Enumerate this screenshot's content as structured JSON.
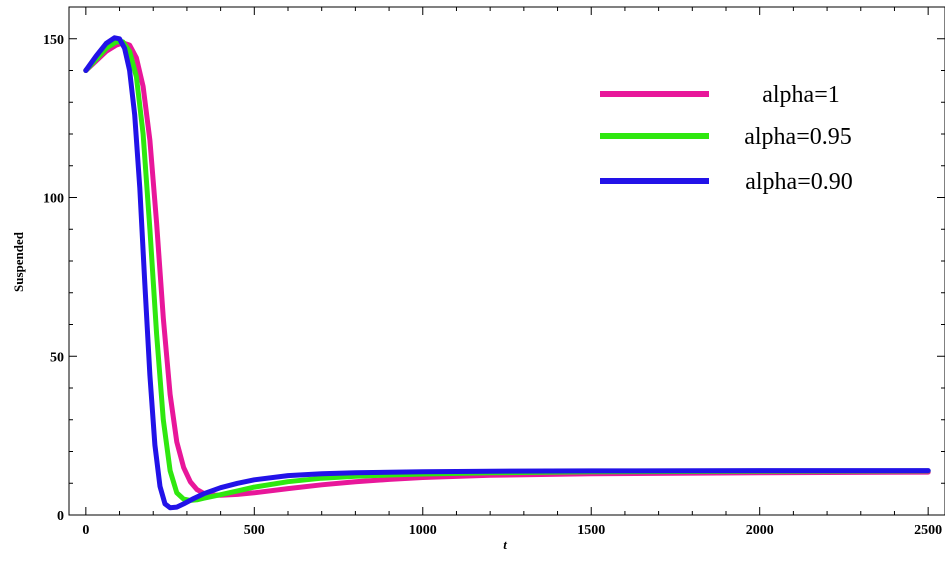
{
  "chart_data": {
    "type": "line",
    "title": "",
    "xlabel": "t",
    "ylabel": "Suspended",
    "xlim": [
      -50,
      2550
    ],
    "ylim": [
      0,
      160
    ],
    "xticks": [
      0,
      500,
      1000,
      1500,
      2000,
      2500
    ],
    "yticks": [
      0,
      50,
      100,
      150
    ],
    "xtick_labels": [
      "0",
      "500",
      "1000",
      "1500",
      "2000",
      "2500"
    ],
    "ytick_labels": [
      "0",
      "50",
      "100",
      "150"
    ],
    "grid": false,
    "legend_position": "top-right",
    "series": [
      {
        "name": "alpha=1",
        "color": "#e8179a",
        "x": [
          0,
          30,
          60,
          90,
          110,
          130,
          150,
          170,
          190,
          210,
          230,
          250,
          270,
          290,
          310,
          330,
          350,
          370,
          400,
          450,
          500,
          600,
          700,
          800,
          900,
          1000,
          1200,
          1500,
          2000,
          2500
        ],
        "y": [
          140,
          143,
          146,
          148,
          148.7,
          148,
          144,
          135,
          118,
          92,
          62,
          38,
          23,
          15,
          10.5,
          8,
          6.8,
          6.3,
          6.2,
          6.5,
          7.0,
          8.3,
          9.5,
          10.5,
          11.2,
          11.8,
          12.5,
          13.0,
          13.3,
          13.5
        ]
      },
      {
        "name": "alpha=0.95",
        "color": "#2fe80f",
        "x": [
          0,
          30,
          60,
          90,
          110,
          130,
          150,
          170,
          190,
          210,
          230,
          250,
          270,
          290,
          310,
          330,
          350,
          400,
          450,
          500,
          600,
          700,
          800,
          900,
          1000,
          1200,
          1500,
          2000,
          2500
        ],
        "y": [
          140,
          143.5,
          147,
          149,
          149,
          146,
          138,
          120,
          90,
          57,
          30,
          14,
          7,
          5,
          4.6,
          4.8,
          5.3,
          6.4,
          7.6,
          8.8,
          10.5,
          11.6,
          12.2,
          12.6,
          12.9,
          13.3,
          13.6,
          13.8,
          13.9
        ]
      },
      {
        "name": "alpha=0.90",
        "color": "#2212e8",
        "x": [
          0,
          30,
          60,
          85,
          100,
          115,
          130,
          145,
          160,
          175,
          190,
          205,
          220,
          235,
          250,
          270,
          290,
          320,
          350,
          400,
          450,
          500,
          600,
          700,
          800,
          1000,
          1200,
          1500,
          2000,
          2500
        ],
        "y": [
          140,
          144.5,
          148.5,
          150.3,
          150,
          147,
          140,
          126,
          103,
          73,
          44,
          22,
          9,
          3.5,
          2.3,
          2.5,
          3.5,
          5.2,
          6.7,
          8.6,
          10.0,
          11.1,
          12.4,
          13.0,
          13.3,
          13.6,
          13.8,
          13.9,
          14.0,
          14.0
        ]
      }
    ]
  }
}
